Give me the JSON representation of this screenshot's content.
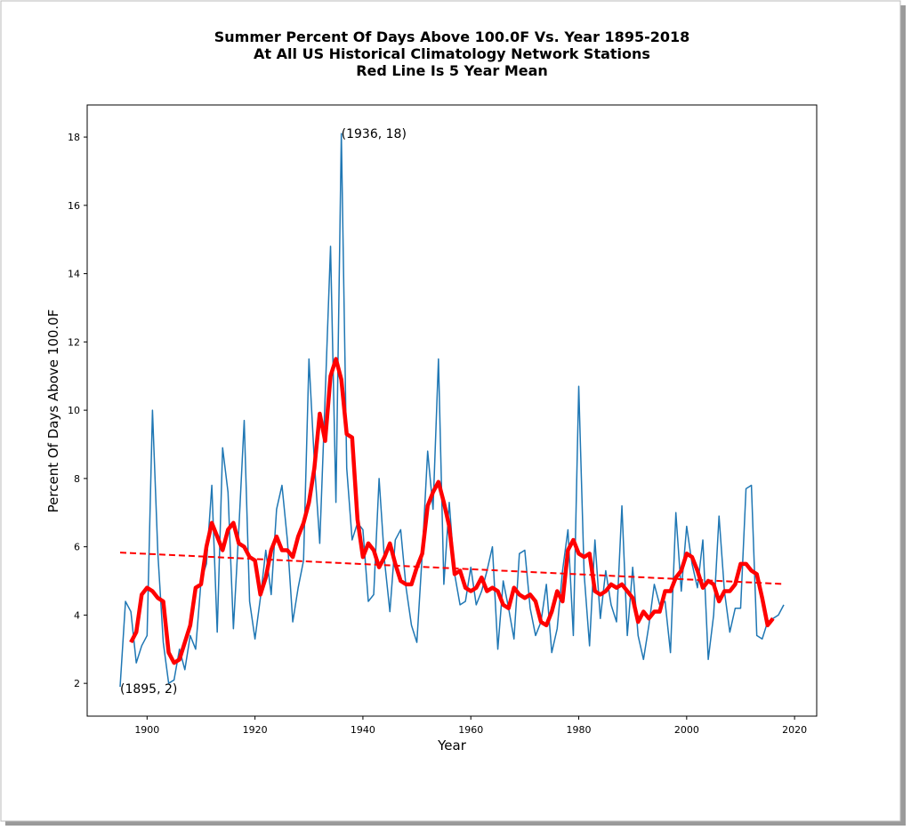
{
  "chart_data": {
    "type": "line",
    "title": [
      "Summer Percent Of Days Above 100.0F Vs. Year 1895-2018",
      "At All US Historical Climatology Network Stations",
      "Red Line Is 5 Year Mean"
    ],
    "xlabel": "Year",
    "ylabel": "Percent Of Days Above 100.0F",
    "x": [
      1895,
      1896,
      1897,
      1898,
      1899,
      1900,
      1901,
      1902,
      1903,
      1904,
      1905,
      1906,
      1907,
      1908,
      1909,
      1910,
      1911,
      1912,
      1913,
      1914,
      1915,
      1916,
      1917,
      1918,
      1919,
      1920,
      1921,
      1922,
      1923,
      1924,
      1925,
      1926,
      1927,
      1928,
      1929,
      1930,
      1931,
      1932,
      1933,
      1934,
      1935,
      1936,
      1937,
      1938,
      1939,
      1940,
      1941,
      1942,
      1943,
      1944,
      1945,
      1946,
      1947,
      1948,
      1949,
      1950,
      1951,
      1952,
      1953,
      1954,
      1955,
      1956,
      1957,
      1958,
      1959,
      1960,
      1961,
      1962,
      1963,
      1964,
      1965,
      1966,
      1967,
      1968,
      1969,
      1970,
      1971,
      1972,
      1973,
      1974,
      1975,
      1976,
      1977,
      1978,
      1979,
      1980,
      1981,
      1982,
      1983,
      1984,
      1985,
      1986,
      1987,
      1988,
      1989,
      1990,
      1991,
      1992,
      1993,
      1994,
      1995,
      1996,
      1997,
      1998,
      1999,
      2000,
      2001,
      2002,
      2003,
      2004,
      2005,
      2006,
      2007,
      2008,
      2009,
      2010,
      2011,
      2012,
      2013,
      2014,
      2015,
      2016,
      2017,
      2018
    ],
    "series": [
      {
        "color": "#1f77b4",
        "width": 1.5,
        "values": [
          1.9,
          4.4,
          4.1,
          2.6,
          3.1,
          3.4,
          10.0,
          5.8,
          3.2,
          2.0,
          2.1,
          3.0,
          2.4,
          3.4,
          3.0,
          5.0,
          5.5,
          7.8,
          3.5,
          8.9,
          7.6,
          3.6,
          6.5,
          9.7,
          4.4,
          3.3,
          4.5,
          5.9,
          4.6,
          7.1,
          7.8,
          6.2,
          3.8,
          4.8,
          5.6,
          11.5,
          8.5,
          6.1,
          10.4,
          14.8,
          7.3,
          18.1,
          8.3,
          6.2,
          6.7,
          6.5,
          4.4,
          4.6,
          8.0,
          5.6,
          4.1,
          6.2,
          6.5,
          4.8,
          3.7,
          3.2,
          5.8,
          8.8,
          7.1,
          11.5,
          4.9,
          7.3,
          5.2,
          4.3,
          4.4,
          5.4,
          4.3,
          4.7,
          5.3,
          6.0,
          3.0,
          5.0,
          4.2,
          3.3,
          5.8,
          5.9,
          4.2,
          3.4,
          3.8,
          4.9,
          2.9,
          3.6,
          5.3,
          6.5,
          3.4,
          10.7,
          5.2,
          3.1,
          6.2,
          3.9,
          5.3,
          4.3,
          3.8,
          7.2,
          3.4,
          5.4,
          3.4,
          2.7,
          3.7,
          4.9,
          4.3,
          4.4,
          2.9,
          7.0,
          4.7,
          6.6,
          5.5,
          4.8,
          6.2,
          2.7,
          4.0,
          6.9,
          4.7,
          3.5,
          4.2,
          4.2,
          7.7,
          7.8,
          3.4,
          3.3,
          3.8,
          3.9,
          4.0,
          4.3
        ]
      },
      {
        "color": "#ff0000",
        "width": 4.5,
        "values": [
          null,
          null,
          3.2,
          3.5,
          4.6,
          4.8,
          4.7,
          4.5,
          4.4,
          2.9,
          2.6,
          2.7,
          3.2,
          3.7,
          4.8,
          4.9,
          6.0,
          6.7,
          6.3,
          5.9,
          6.5,
          6.7,
          6.1,
          6.0,
          5.7,
          5.6,
          4.6,
          5.1,
          5.9,
          6.3,
          5.9,
          5.9,
          5.7,
          6.3,
          6.7,
          7.3,
          8.3,
          9.9,
          9.1,
          11.0,
          11.5,
          10.9,
          9.3,
          9.2,
          6.8,
          5.7,
          6.1,
          5.9,
          5.4,
          5.7,
          6.1,
          5.5,
          5.0,
          4.9,
          4.9,
          5.4,
          5.8,
          7.2,
          7.6,
          7.9,
          7.3,
          6.6,
          5.2,
          5.3,
          4.8,
          4.7,
          4.8,
          5.1,
          4.7,
          4.8,
          4.7,
          4.3,
          4.2,
          4.8,
          4.6,
          4.5,
          4.6,
          4.4,
          3.8,
          3.7,
          4.1,
          4.7,
          4.4,
          5.9,
          6.2,
          5.8,
          5.7,
          5.8,
          4.7,
          4.6,
          4.7,
          4.9,
          4.8,
          4.9,
          4.7,
          4.5,
          3.8,
          4.1,
          3.9,
          4.1,
          4.1,
          4.7,
          4.7,
          5.1,
          5.3,
          5.8,
          5.7,
          5.3,
          4.8,
          5.0,
          4.9,
          4.4,
          4.7,
          4.7,
          4.9,
          5.5,
          5.5,
          5.3,
          5.2,
          4.5,
          3.7,
          3.9,
          null,
          null
        ]
      }
    ],
    "trend": {
      "x": [
        1895,
        2018
      ],
      "values": [
        5.83,
        4.91
      ],
      "color": "#ff0000",
      "style": "dashed"
    },
    "annotations": [
      {
        "text": "(1936, 18)",
        "x": 1936,
        "y": 18.1
      },
      {
        "text": "(1895, 2)",
        "x": 1895,
        "y": 1.85
      }
    ],
    "xlim": [
      1888.9,
      2024.1
    ],
    "ylim": [
      1.04,
      18.94
    ],
    "xticks": [
      1900,
      1920,
      1940,
      1960,
      1980,
      2000,
      2020
    ],
    "yticks": [
      2,
      4,
      6,
      8,
      10,
      12,
      14,
      16,
      18
    ],
    "grid": false
  }
}
